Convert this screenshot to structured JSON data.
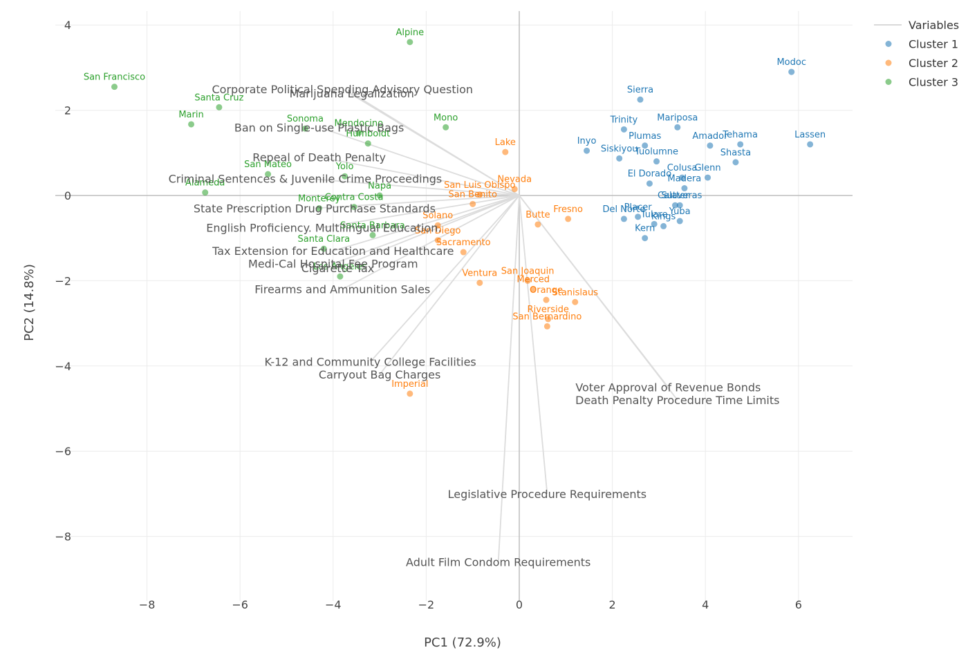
{
  "chart_data": {
    "type": "scatter",
    "xlabel": "PC1 (72.9%)",
    "ylabel": "PC2 (14.8%)",
    "xlim": [
      -9.2,
      7.2
    ],
    "ylim": [
      -9.4,
      4.4
    ],
    "x_ticks": [
      -8,
      -6,
      -4,
      -2,
      0,
      2,
      4,
      6
    ],
    "y_ticks": [
      4,
      2,
      0,
      -2,
      -4,
      -6,
      -8
    ],
    "x_tick_labels": [
      "−8",
      "−6",
      "−4",
      "−2",
      "0",
      "2",
      "4",
      "6"
    ],
    "y_tick_labels": [
      "4",
      "2",
      "0",
      "−2",
      "−4",
      "−6",
      "−8"
    ],
    "grid": true,
    "legend_position": "top-right",
    "legend": [
      {
        "name": "Variables",
        "kind": "line",
        "color": "#d9d9d9"
      },
      {
        "name": "Cluster 1",
        "kind": "marker",
        "color": "#1f77b4"
      },
      {
        "name": "Cluster 2",
        "kind": "marker",
        "color": "#ff7f0e"
      },
      {
        "name": "Cluster 3",
        "kind": "marker",
        "color": "#2ca02c"
      }
    ],
    "vectors": [
      {
        "label": "Corporate Political Spending Advisory Question",
        "x": -3.8,
        "y": 2.5
      },
      {
        "label": "Marijuana Legalization",
        "x": -3.6,
        "y": 2.4
      },
      {
        "label": "Ban on Single-use Plastic Bags",
        "x": -4.3,
        "y": 1.6
      },
      {
        "label": "Repeal of Death Penalty",
        "x": -4.3,
        "y": 0.9
      },
      {
        "label": "Criminal Sentences & Juvenile Crime Proceedings",
        "x": -4.6,
        "y": 0.4
      },
      {
        "label": "State Prescription Drug Purchase Standards",
        "x": -4.4,
        "y": -0.3
      },
      {
        "label": "English Proficiency. Multilingual Education.",
        "x": -4.2,
        "y": -0.75
      },
      {
        "label": "Tax Extension for Education and Healthcare",
        "x": -4.0,
        "y": -1.3
      },
      {
        "label": "Medi-Cal Hospital Fee Program",
        "x": -4.0,
        "y": -1.6
      },
      {
        "label": "Cigarette Tax",
        "x": -3.9,
        "y": -1.7
      },
      {
        "label": "Firearms and Ammunition Sales",
        "x": -3.8,
        "y": -2.2
      },
      {
        "label": "K-12 and Community College Facilities",
        "x": -3.2,
        "y": -3.9
      },
      {
        "label": "Carryout Bag Charges",
        "x": -3.0,
        "y": -4.2
      },
      {
        "label": "Voter Approval of Revenue Bonds",
        "x": 3.2,
        "y": -4.5
      },
      {
        "label": "Death Penalty Procedure Time Limits",
        "x": 3.4,
        "y": -4.8
      },
      {
        "label": "Legislative Procedure Requirements",
        "x": 0.6,
        "y": -7.0
      },
      {
        "label": "Adult Film Condom Requirements",
        "x": -0.45,
        "y": -8.6
      }
    ],
    "series": [
      {
        "name": "Cluster 1",
        "color": "#1f77b4",
        "points": [
          {
            "label": "Modoc",
            "x": 5.85,
            "y": 2.9
          },
          {
            "label": "Lassen",
            "x": 6.25,
            "y": 1.2
          },
          {
            "label": "Sierra",
            "x": 2.6,
            "y": 2.25
          },
          {
            "label": "Trinity",
            "x": 2.25,
            "y": 1.55
          },
          {
            "label": "Mariposa",
            "x": 3.4,
            "y": 1.6
          },
          {
            "label": "Inyo",
            "x": 1.45,
            "y": 1.05
          },
          {
            "label": "Plumas",
            "x": 2.7,
            "y": 1.17
          },
          {
            "label": "Amador",
            "x": 4.1,
            "y": 1.17
          },
          {
            "label": "Tehama",
            "x": 4.75,
            "y": 1.2
          },
          {
            "label": "Siskiyou",
            "x": 2.15,
            "y": 0.87
          },
          {
            "label": "Tuolumne",
            "x": 2.95,
            "y": 0.8
          },
          {
            "label": "Shasta",
            "x": 4.65,
            "y": 0.78
          },
          {
            "label": "El Dorado",
            "x": 2.8,
            "y": 0.28
          },
          {
            "label": "Colusa",
            "x": 3.5,
            "y": 0.42
          },
          {
            "label": "Glenn",
            "x": 4.05,
            "y": 0.42
          },
          {
            "label": "Madera",
            "x": 3.55,
            "y": 0.17
          },
          {
            "label": "Sutter",
            "x": 3.35,
            "y": -0.23
          },
          {
            "label": "Calaveras",
            "x": 3.45,
            "y": -0.23
          },
          {
            "label": "Del Norte",
            "x": 2.25,
            "y": -0.55
          },
          {
            "label": "Placer",
            "x": 2.55,
            "y": -0.5
          },
          {
            "label": "Tulare",
            "x": 2.9,
            "y": -0.67
          },
          {
            "label": "Kings",
            "x": 3.1,
            "y": -0.72
          },
          {
            "label": "Yuba",
            "x": 3.45,
            "y": -0.6
          },
          {
            "label": "Kern",
            "x": 2.7,
            "y": -1.0
          }
        ]
      },
      {
        "name": "Cluster 2",
        "color": "#ff7f0e",
        "points": [
          {
            "label": "Lake",
            "x": -0.3,
            "y": 1.02
          },
          {
            "label": "Nevada",
            "x": -0.1,
            "y": 0.15
          },
          {
            "label": "San Luis Obispo",
            "x": -0.85,
            "y": 0.02
          },
          {
            "label": "San Benito",
            "x": -1.0,
            "y": -0.2
          },
          {
            "label": "Fresno",
            "x": 1.05,
            "y": -0.55
          },
          {
            "label": "Butte",
            "x": 0.4,
            "y": -0.68
          },
          {
            "label": "Solano",
            "x": -1.75,
            "y": -0.7
          },
          {
            "label": "San Diego",
            "x": -1.75,
            "y": -1.05
          },
          {
            "label": "Sacramento",
            "x": -1.2,
            "y": -1.33
          },
          {
            "label": "Ventura",
            "x": -0.85,
            "y": -2.05
          },
          {
            "label": "San Joaquin",
            "x": 0.18,
            "y": -2.0
          },
          {
            "label": "Merced",
            "x": 0.3,
            "y": -2.2
          },
          {
            "label": "Orange",
            "x": 0.58,
            "y": -2.45
          },
          {
            "label": "Stanislaus",
            "x": 1.2,
            "y": -2.5
          },
          {
            "label": "Riverside",
            "x": 0.62,
            "y": -2.9
          },
          {
            "label": "San Bernardino",
            "x": 0.6,
            "y": -3.07
          },
          {
            "label": "Imperial",
            "x": -2.35,
            "y": -4.65
          }
        ]
      },
      {
        "name": "Cluster 3",
        "color": "#2ca02c",
        "points": [
          {
            "label": "Alpine",
            "x": -2.35,
            "y": 3.6
          },
          {
            "label": "San Francisco",
            "x": -8.7,
            "y": 2.55
          },
          {
            "label": "Santa Cruz",
            "x": -6.45,
            "y": 2.07
          },
          {
            "label": "Marin",
            "x": -7.05,
            "y": 1.67
          },
          {
            "label": "Sonoma",
            "x": -4.6,
            "y": 1.57
          },
          {
            "label": "Mendocino",
            "x": -3.45,
            "y": 1.47
          },
          {
            "label": "Mono",
            "x": -1.58,
            "y": 1.6
          },
          {
            "label": "Humboldt",
            "x": -3.25,
            "y": 1.22
          },
          {
            "label": "San Mateo",
            "x": -5.4,
            "y": 0.5
          },
          {
            "label": "Yolo",
            "x": -3.75,
            "y": 0.45
          },
          {
            "label": "Alameda",
            "x": -6.75,
            "y": 0.07
          },
          {
            "label": "Napa",
            "x": -3.0,
            "y": 0.0
          },
          {
            "label": "Monterey",
            "x": -4.3,
            "y": -0.3
          },
          {
            "label": "Contra Costa",
            "x": -3.55,
            "y": -0.27
          },
          {
            "label": "Santa Barbara",
            "x": -3.15,
            "y": -0.93
          },
          {
            "label": "Santa Clara",
            "x": -4.2,
            "y": -1.25
          },
          {
            "label": "Los Angeles",
            "x": -3.85,
            "y": -1.9
          }
        ]
      }
    ]
  }
}
